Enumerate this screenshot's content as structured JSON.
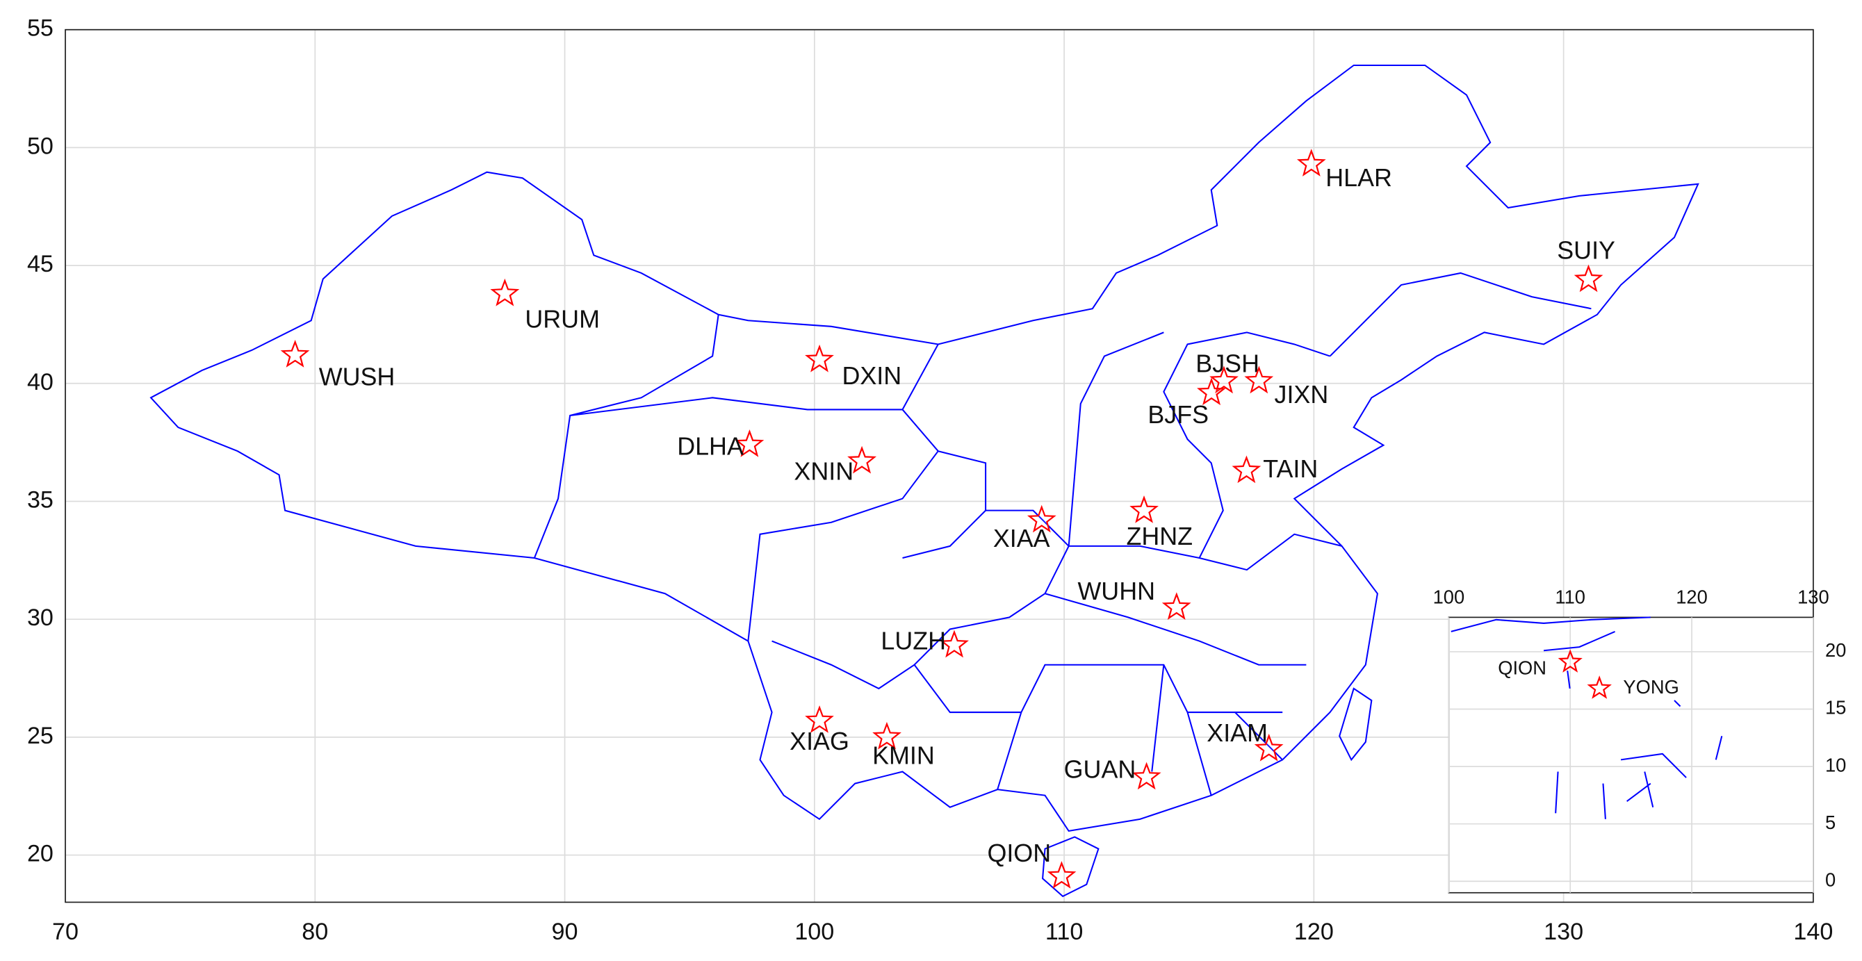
{
  "chart_data": [
    {
      "type": "scatter",
      "marker": "star",
      "marker_color": "#ff0000",
      "boundary_color": "#0000ff",
      "grid": true,
      "xlim": [
        70,
        140
      ],
      "ylim": [
        18,
        55
      ],
      "xticks": [
        70,
        80,
        90,
        100,
        110,
        120,
        130,
        140
      ],
      "yticks": [
        20,
        25,
        30,
        35,
        40,
        45,
        50,
        55
      ],
      "labels": [
        "WUSH",
        "URUM",
        "DXIN",
        "DLHA",
        "XNIN",
        "HLAR",
        "SUIY",
        "BJSH",
        "BJFS",
        "JIXN",
        "TAIN",
        "XIAA",
        "ZHNZ",
        "WUHN",
        "LUZH",
        "XIAG",
        "KMIN",
        "GUAN",
        "XIAM",
        "QION"
      ],
      "x": [
        79.2,
        87.6,
        100.2,
        97.4,
        101.9,
        119.9,
        131.0,
        116.4,
        115.9,
        117.8,
        117.3,
        109.1,
        113.2,
        114.5,
        105.6,
        100.2,
        102.9,
        113.3,
        118.2,
        109.9
      ],
      "y": [
        41.2,
        43.8,
        41.0,
        37.4,
        36.7,
        49.3,
        44.4,
        40.1,
        39.6,
        40.1,
        36.3,
        34.2,
        34.6,
        30.5,
        28.9,
        25.7,
        25.0,
        23.3,
        24.5,
        19.1
      ]
    },
    {
      "type": "scatter",
      "marker": "star",
      "marker_color": "#ff0000",
      "boundary_color": "#0000ff",
      "grid": true,
      "xlim": [
        100,
        130
      ],
      "ylim": [
        -1,
        23
      ],
      "xticks": [
        100,
        110,
        120,
        130
      ],
      "yticks": [
        0,
        5,
        10,
        15,
        20
      ],
      "labels": [
        "QION",
        "YONG"
      ],
      "x": [
        110.0,
        112.4
      ],
      "y": [
        19.1,
        16.8
      ]
    }
  ]
}
